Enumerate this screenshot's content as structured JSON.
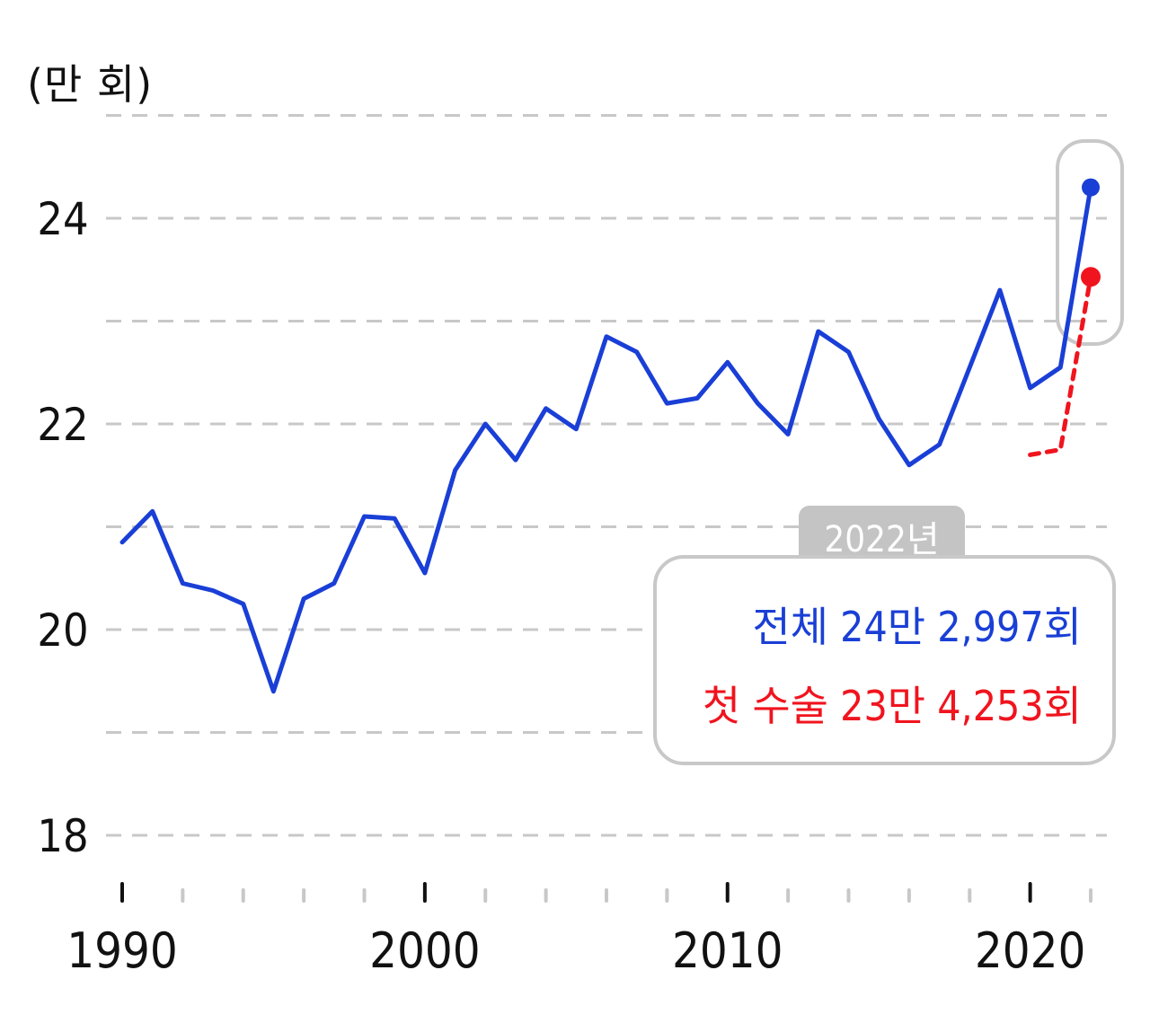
{
  "unit_label": "(만 회)",
  "callout": {
    "year": "2022년",
    "total_text": "전체 24만 2,997회",
    "first_text": "첫 수술 23만 4,253회"
  },
  "colors": {
    "total": "#1a3fd6",
    "first": "#f0141e",
    "grid": "#c8c8c8"
  },
  "chart_data": {
    "type": "line",
    "title": "",
    "xlabel": "",
    "ylabel": "(만 회)",
    "xlim": [
      1990,
      2022
    ],
    "ylim": [
      18,
      25
    ],
    "y_ticks": [
      18,
      20,
      22,
      24
    ],
    "x_ticks": [
      1990,
      2000,
      2010,
      2020
    ],
    "grid": true,
    "series": [
      {
        "name": "전체",
        "x": [
          1990,
          1991,
          1992,
          1993,
          1994,
          1995,
          1996,
          1997,
          1998,
          1999,
          2000,
          2001,
          2002,
          2003,
          2004,
          2005,
          2006,
          2007,
          2008,
          2009,
          2010,
          2011,
          2012,
          2013,
          2014,
          2015,
          2016,
          2017,
          2018,
          2019,
          2020,
          2021,
          2022
        ],
        "values": [
          20.85,
          21.15,
          20.45,
          20.38,
          20.25,
          19.4,
          20.3,
          20.45,
          21.1,
          21.08,
          20.55,
          21.55,
          22.0,
          21.65,
          22.15,
          21.95,
          22.85,
          22.7,
          22.2,
          22.25,
          22.6,
          22.2,
          21.9,
          22.9,
          22.7,
          22.05,
          21.6,
          21.8,
          22.55,
          23.3,
          22.35,
          22.55,
          24.3
        ]
      },
      {
        "name": "첫 수술",
        "x": [
          2020,
          2021,
          2022
        ],
        "values": [
          21.7,
          21.75,
          23.43
        ]
      }
    ]
  }
}
